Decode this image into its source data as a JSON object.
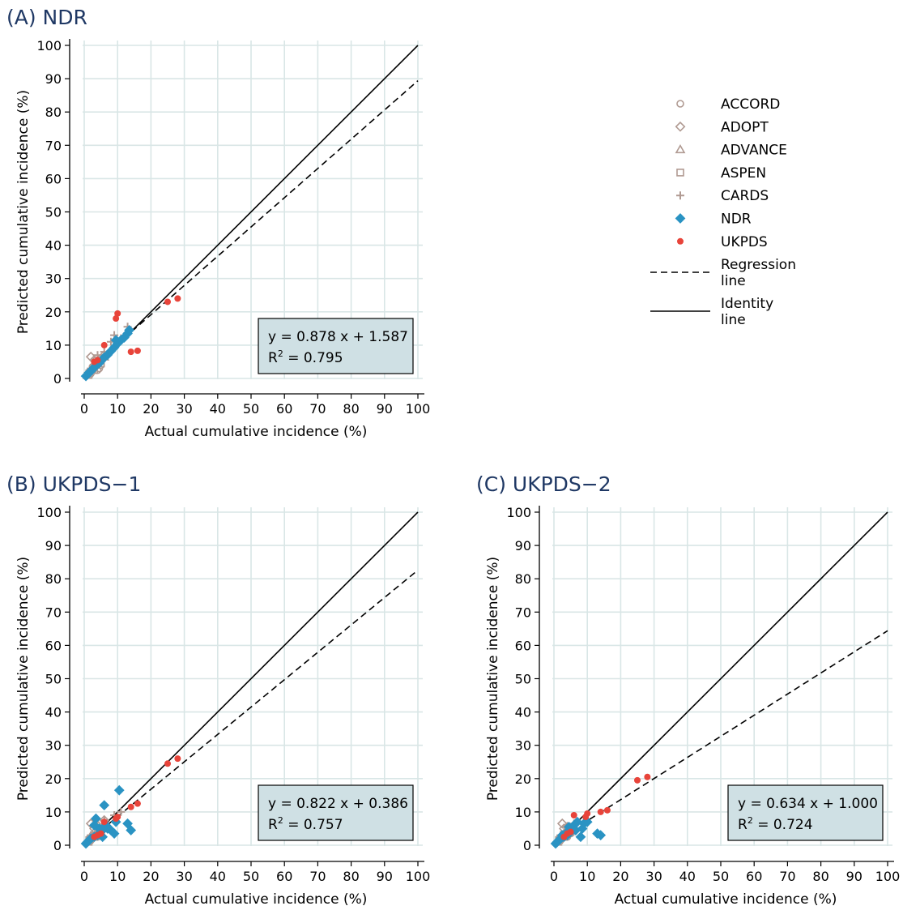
{
  "legend": {
    "items": [
      {
        "label": "ACCORD",
        "marker": "circle-open",
        "color": "#b09a92"
      },
      {
        "label": "ADOPT",
        "marker": "diamond-open",
        "color": "#b09a92"
      },
      {
        "label": "ADVANCE",
        "marker": "triangle-open",
        "color": "#b09a92"
      },
      {
        "label": "ASPEN",
        "marker": "square-open",
        "color": "#b09a92"
      },
      {
        "label": "CARDS",
        "marker": "plus",
        "color": "#b09a92"
      },
      {
        "label": "NDR",
        "marker": "diamond-filled",
        "color": "#2a93c3"
      },
      {
        "label": "UKPDS",
        "marker": "circle-filled",
        "color": "#e8443a"
      }
    ],
    "regression": [
      "Regression",
      "line"
    ],
    "identity": [
      "Identity",
      "line"
    ]
  },
  "colors": {
    "title": "#1f3864",
    "grid": "#d9e6e6",
    "eq_box": "#cfe0e4",
    "ndr": "#2a93c3",
    "ukpds": "#e8443a",
    "open": "#b09a92"
  },
  "chart_data": [
    {
      "type": "scatter",
      "title": "(A) NDR",
      "xlabel": "Actual cumulative incidence (%)",
      "ylabel": "Predicted cumulative incidence (%)",
      "xlim": [
        0,
        100
      ],
      "ylim": [
        0,
        100
      ],
      "xticks": [
        0,
        10,
        20,
        30,
        40,
        50,
        60,
        70,
        80,
        90,
        100
      ],
      "yticks": [
        0,
        10,
        20,
        30,
        40,
        50,
        60,
        70,
        80,
        90,
        100
      ],
      "grid": true,
      "regression": {
        "slope": 0.878,
        "intercept": 1.587
      },
      "identity": {
        "slope": 1,
        "intercept": 0
      },
      "equation": [
        "y = 0.878 x + 1.587",
        "R",
        "2",
        " = 0.795"
      ],
      "series": [
        {
          "name": "ACCORD",
          "points": [
            [
              1.5,
              2
            ],
            [
              2,
              1.5
            ],
            [
              3,
              3
            ],
            [
              4,
              2.5
            ],
            [
              5,
              4
            ],
            [
              2.5,
              3.5
            ],
            [
              4.5,
              3
            ]
          ]
        },
        {
          "name": "ADOPT",
          "points": [
            [
              2,
              6.5
            ],
            [
              3,
              5.5
            ],
            [
              4,
              5
            ],
            [
              5,
              6
            ],
            [
              6,
              7
            ]
          ]
        },
        {
          "name": "ADVANCE",
          "points": [
            [
              1,
              1
            ],
            [
              2,
              2.5
            ],
            [
              3,
              4
            ],
            [
              4,
              4.5
            ],
            [
              6,
              6.5
            ]
          ]
        },
        {
          "name": "ASPEN",
          "points": [
            [
              1.5,
              1.5
            ],
            [
              3,
              2.5
            ],
            [
              5,
              4.5
            ]
          ]
        },
        {
          "name": "CARDS",
          "points": [
            [
              2,
              3
            ],
            [
              4,
              7
            ],
            [
              6,
              8
            ],
            [
              9,
              13
            ],
            [
              11,
              12
            ],
            [
              13,
              15.5
            ],
            [
              8,
              11
            ]
          ]
        },
        {
          "name": "NDR",
          "points": [
            [
              0.5,
              0.7
            ],
            [
              1,
              1.2
            ],
            [
              1.5,
              1.8
            ],
            [
              2,
              2.2
            ],
            [
              2.5,
              2.8
            ],
            [
              3,
              3.3
            ],
            [
              3.5,
              3.7
            ],
            [
              4,
              4.4
            ],
            [
              4.5,
              4.6
            ],
            [
              5,
              5.2
            ],
            [
              5.5,
              5.8
            ],
            [
              6,
              6.3
            ],
            [
              7,
              7.1
            ],
            [
              8,
              8.2
            ],
            [
              9,
              9.3
            ],
            [
              10,
              10.5
            ],
            [
              11,
              11.5
            ],
            [
              12,
              12.3
            ],
            [
              13,
              13.5
            ],
            [
              13.5,
              14.5
            ],
            [
              9.5,
              11.5
            ]
          ]
        },
        {
          "name": "UKPDS",
          "points": [
            [
              3,
              5
            ],
            [
              4,
              5.5
            ],
            [
              6,
              10
            ],
            [
              9.5,
              18
            ],
            [
              10,
              19.5
            ],
            [
              14,
              8
            ],
            [
              16,
              8.3
            ],
            [
              25,
              23
            ],
            [
              28,
              24
            ]
          ]
        }
      ]
    },
    {
      "type": "scatter",
      "title": "(B) UKPDS−1",
      "xlabel": "Actual cumulative incidence (%)",
      "ylabel": "Predicted cumulative incidence (%)",
      "xlim": [
        0,
        100
      ],
      "ylim": [
        0,
        100
      ],
      "xticks": [
        0,
        10,
        20,
        30,
        40,
        50,
        60,
        70,
        80,
        90,
        100
      ],
      "yticks": [
        0,
        10,
        20,
        30,
        40,
        50,
        60,
        70,
        80,
        90,
        100
      ],
      "grid": true,
      "regression": {
        "slope": 0.822,
        "intercept": 0.386
      },
      "identity": {
        "slope": 1,
        "intercept": 0
      },
      "equation": [
        "y = 0.822 x + 0.386",
        "R",
        "2",
        " = 0.757"
      ],
      "series": [
        {
          "name": "ACCORD",
          "points": [
            [
              1.5,
              2
            ],
            [
              2,
              1.5
            ],
            [
              3,
              3
            ],
            [
              4,
              2.5
            ],
            [
              5,
              3.5
            ],
            [
              2.5,
              3
            ]
          ]
        },
        {
          "name": "ADOPT",
          "points": [
            [
              2,
              6.5
            ],
            [
              3,
              5
            ],
            [
              4,
              6
            ],
            [
              6,
              7.5
            ]
          ]
        },
        {
          "name": "ADVANCE",
          "points": [
            [
              1,
              1
            ],
            [
              2,
              2.5
            ],
            [
              3,
              4
            ],
            [
              4,
              4.5
            ],
            [
              6,
              6.5
            ]
          ]
        },
        {
          "name": "ASPEN",
          "points": [
            [
              1.5,
              1.5
            ],
            [
              3,
              2.5
            ],
            [
              5,
              4.5
            ]
          ]
        },
        {
          "name": "CARDS",
          "points": [
            [
              2,
              3
            ],
            [
              4,
              6
            ],
            [
              6,
              7.5
            ],
            [
              9,
              9
            ],
            [
              11,
              10
            ]
          ]
        },
        {
          "name": "NDR",
          "points": [
            [
              0.5,
              0.5
            ],
            [
              1,
              1
            ],
            [
              1.5,
              1.5
            ],
            [
              2,
              2
            ],
            [
              3,
              2.5
            ],
            [
              3.5,
              8
            ],
            [
              4,
              3
            ],
            [
              5,
              4
            ],
            [
              5.5,
              2.5
            ],
            [
              6,
              12
            ],
            [
              6.5,
              6
            ],
            [
              7,
              5
            ],
            [
              8,
              4.5
            ],
            [
              9,
              3.5
            ],
            [
              9.5,
              7
            ],
            [
              10.5,
              16.5
            ],
            [
              13,
              6.5
            ],
            [
              14,
              4.5
            ],
            [
              3,
              6
            ],
            [
              4.5,
              5
            ]
          ]
        },
        {
          "name": "UKPDS",
          "points": [
            [
              3,
              2.5
            ],
            [
              4,
              3
            ],
            [
              5,
              3.5
            ],
            [
              6,
              7
            ],
            [
              9.5,
              8
            ],
            [
              10,
              8.5
            ],
            [
              14,
              11.5
            ],
            [
              16,
              12.5
            ],
            [
              25,
              24.5
            ],
            [
              28,
              26
            ]
          ]
        }
      ]
    },
    {
      "type": "scatter",
      "title": "(C) UKPDS−2",
      "xlabel": "Actual cumulative incidence (%)",
      "ylabel": "Predicted cumulative incidence (%)",
      "xlim": [
        0,
        100
      ],
      "ylim": [
        0,
        100
      ],
      "xticks": [
        0,
        10,
        20,
        30,
        40,
        50,
        60,
        70,
        80,
        90,
        100
      ],
      "yticks": [
        0,
        10,
        20,
        30,
        40,
        50,
        60,
        70,
        80,
        90,
        100
      ],
      "grid": true,
      "regression": {
        "slope": 0.634,
        "intercept": 1.0
      },
      "identity": {
        "slope": 1,
        "intercept": 0
      },
      "equation": [
        "y = 0.634 x + 1.000",
        "R",
        "2",
        " = 0.724"
      ],
      "series": [
        {
          "name": "ACCORD",
          "points": [
            [
              1.5,
              2
            ],
            [
              2,
              1.5
            ],
            [
              3,
              3
            ],
            [
              4,
              2.5
            ],
            [
              5,
              3.5
            ]
          ]
        },
        {
          "name": "ADOPT",
          "points": [
            [
              2.5,
              6.5
            ],
            [
              3,
              5
            ],
            [
              4,
              5.5
            ]
          ]
        },
        {
          "name": "ADVANCE",
          "points": [
            [
              1,
              1
            ],
            [
              2,
              2.5
            ],
            [
              3,
              3.5
            ],
            [
              4,
              4
            ]
          ]
        },
        {
          "name": "ASPEN",
          "points": [
            [
              1.5,
              1.5
            ],
            [
              3,
              2.5
            ],
            [
              5,
              4
            ]
          ]
        },
        {
          "name": "CARDS",
          "points": [
            [
              2,
              3
            ],
            [
              4,
              5
            ],
            [
              6,
              6.5
            ],
            [
              9,
              7
            ]
          ]
        },
        {
          "name": "NDR",
          "points": [
            [
              0.5,
              0.5
            ],
            [
              1,
              1
            ],
            [
              1.5,
              1.5
            ],
            [
              2,
              2
            ],
            [
              2.5,
              3
            ],
            [
              3,
              2.5
            ],
            [
              3.5,
              3.5
            ],
            [
              4,
              3
            ],
            [
              5,
              4
            ],
            [
              5.5,
              5
            ],
            [
              6,
              6
            ],
            [
              6.5,
              4.5
            ],
            [
              7,
              7
            ],
            [
              8,
              2.5
            ],
            [
              8.5,
              5
            ],
            [
              9,
              6.5
            ],
            [
              10,
              7
            ],
            [
              13,
              3.5
            ],
            [
              14,
              3
            ],
            [
              4.5,
              5.5
            ]
          ]
        },
        {
          "name": "UKPDS",
          "points": [
            [
              3,
              2.5
            ],
            [
              4,
              3.5
            ],
            [
              5,
              4
            ],
            [
              6,
              9
            ],
            [
              9.5,
              8.5
            ],
            [
              10,
              9.5
            ],
            [
              14,
              10
            ],
            [
              16,
              10.5
            ],
            [
              25,
              19.5
            ],
            [
              28,
              20.5
            ]
          ]
        }
      ]
    }
  ]
}
